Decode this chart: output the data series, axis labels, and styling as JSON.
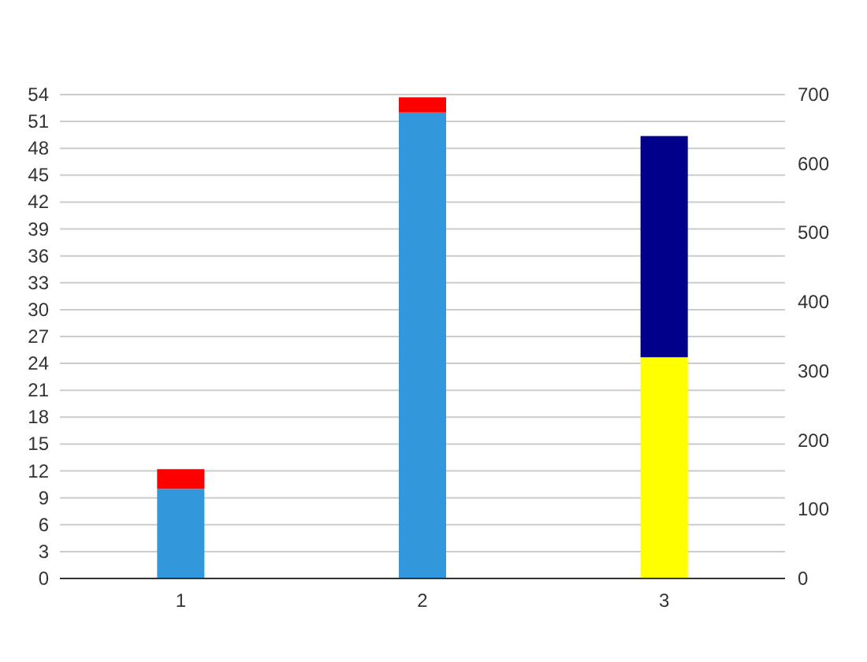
{
  "chart_data": {
    "type": "bar",
    "stacked": true,
    "categories": [
      "1",
      "2",
      "3"
    ],
    "series": [
      {
        "color": "#3398db",
        "values": [
          10,
          52,
          null
        ]
      },
      {
        "color": "#ff0000",
        "values": [
          2.2,
          1.7,
          null
        ]
      },
      {
        "color": "#ffff00",
        "values": [
          null,
          null,
          320
        ],
        "axis": "y2"
      },
      {
        "color": "#00008b",
        "values": [
          null,
          null,
          320
        ],
        "axis": "y2"
      }
    ],
    "ylim": [
      0,
      54
    ],
    "yticks": [
      0,
      3,
      6,
      9,
      12,
      15,
      18,
      21,
      24,
      27,
      30,
      33,
      36,
      39,
      42,
      45,
      48,
      51,
      54
    ],
    "y2lim": [
      0,
      700
    ],
    "y2ticks": [
      0,
      100,
      200,
      300,
      400,
      500,
      600,
      700
    ],
    "grid": "y"
  }
}
